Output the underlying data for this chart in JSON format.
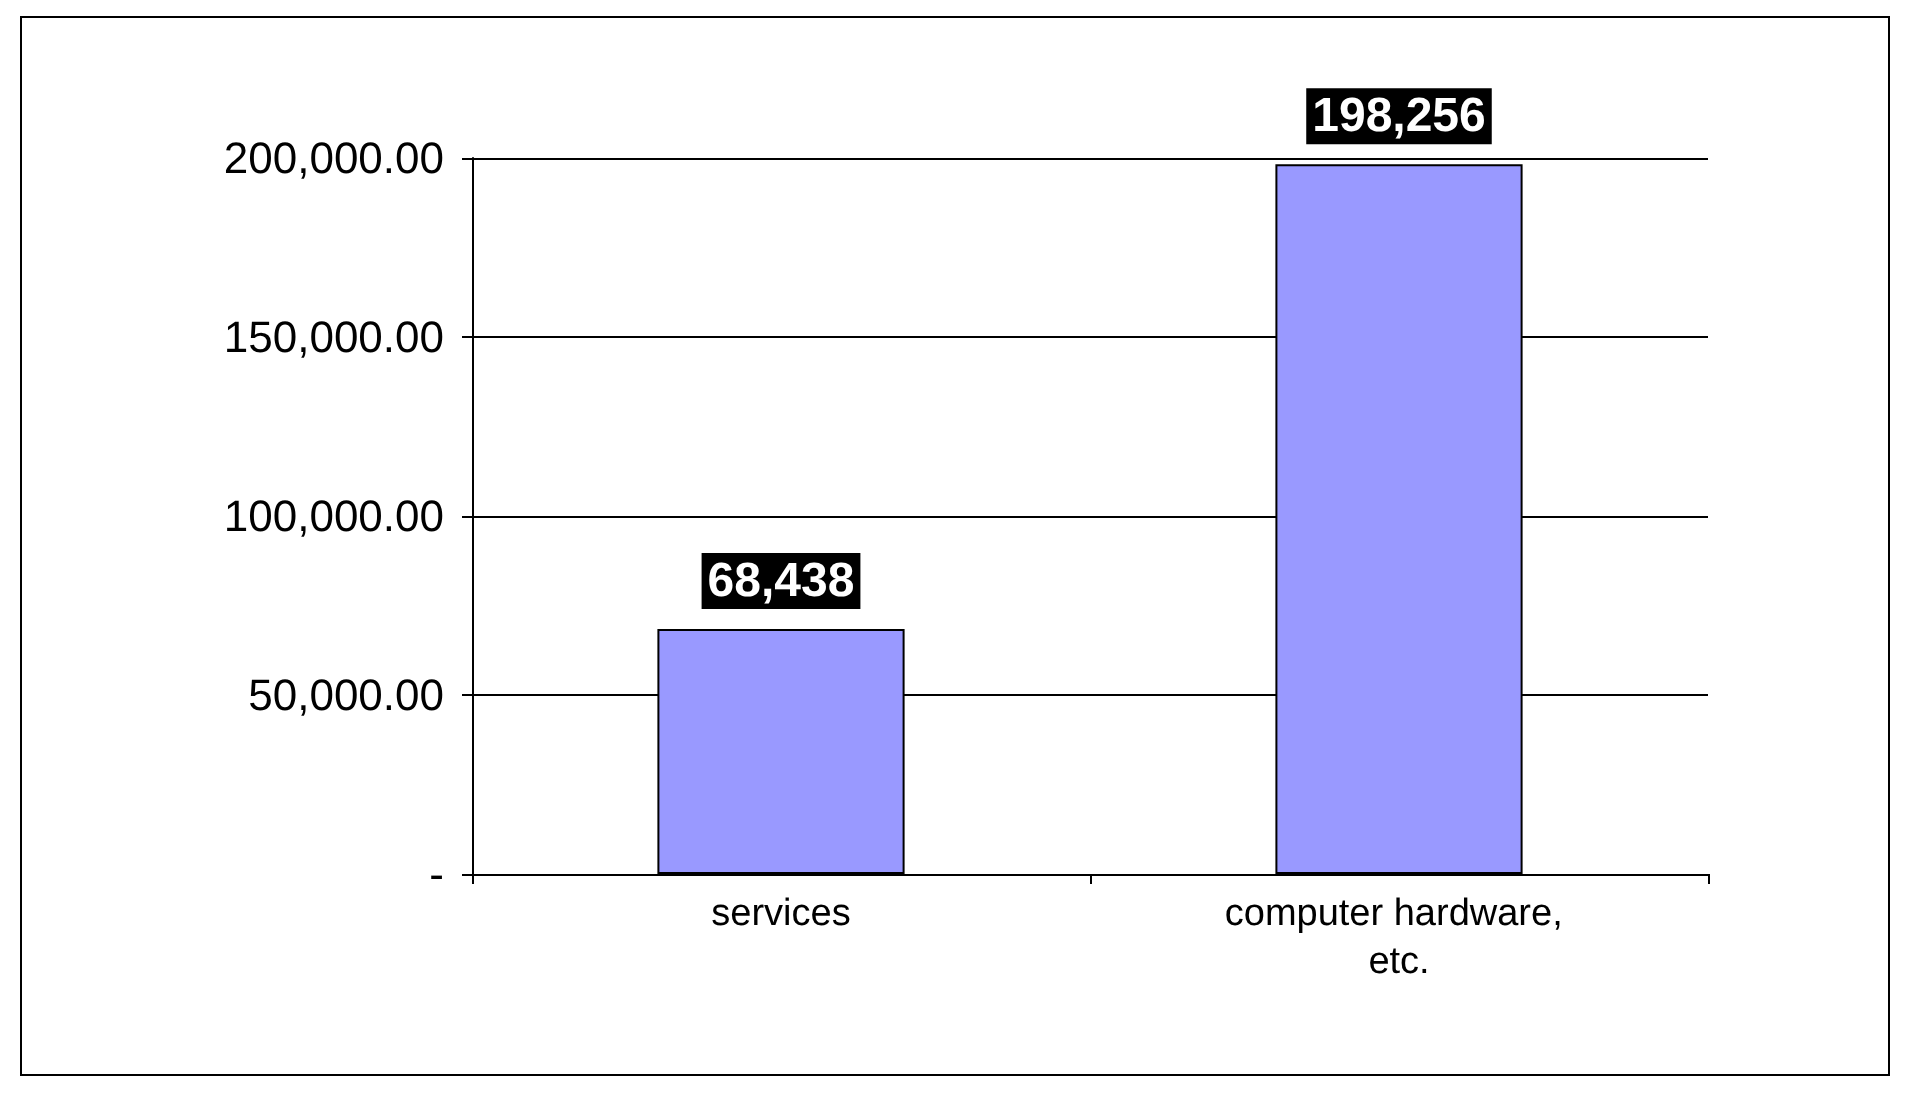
{
  "chart_data": {
    "type": "bar",
    "categories": [
      "services",
      "computer hardware, etc."
    ],
    "values": [
      68438,
      198256
    ],
    "color": "#9999ff",
    "value_labels": [
      "68,438",
      "198,256"
    ],
    "ylim": [
      0,
      200000
    ],
    "yticks": [
      {
        "value": 0,
        "label": "-"
      },
      {
        "value": 50000,
        "label": "50,000.00"
      },
      {
        "value": 100000,
        "label": "100,000.00"
      },
      {
        "value": 150000,
        "label": "150,000.00"
      },
      {
        "value": 200000,
        "label": "200,000.00"
      }
    ],
    "grid": "y"
  }
}
